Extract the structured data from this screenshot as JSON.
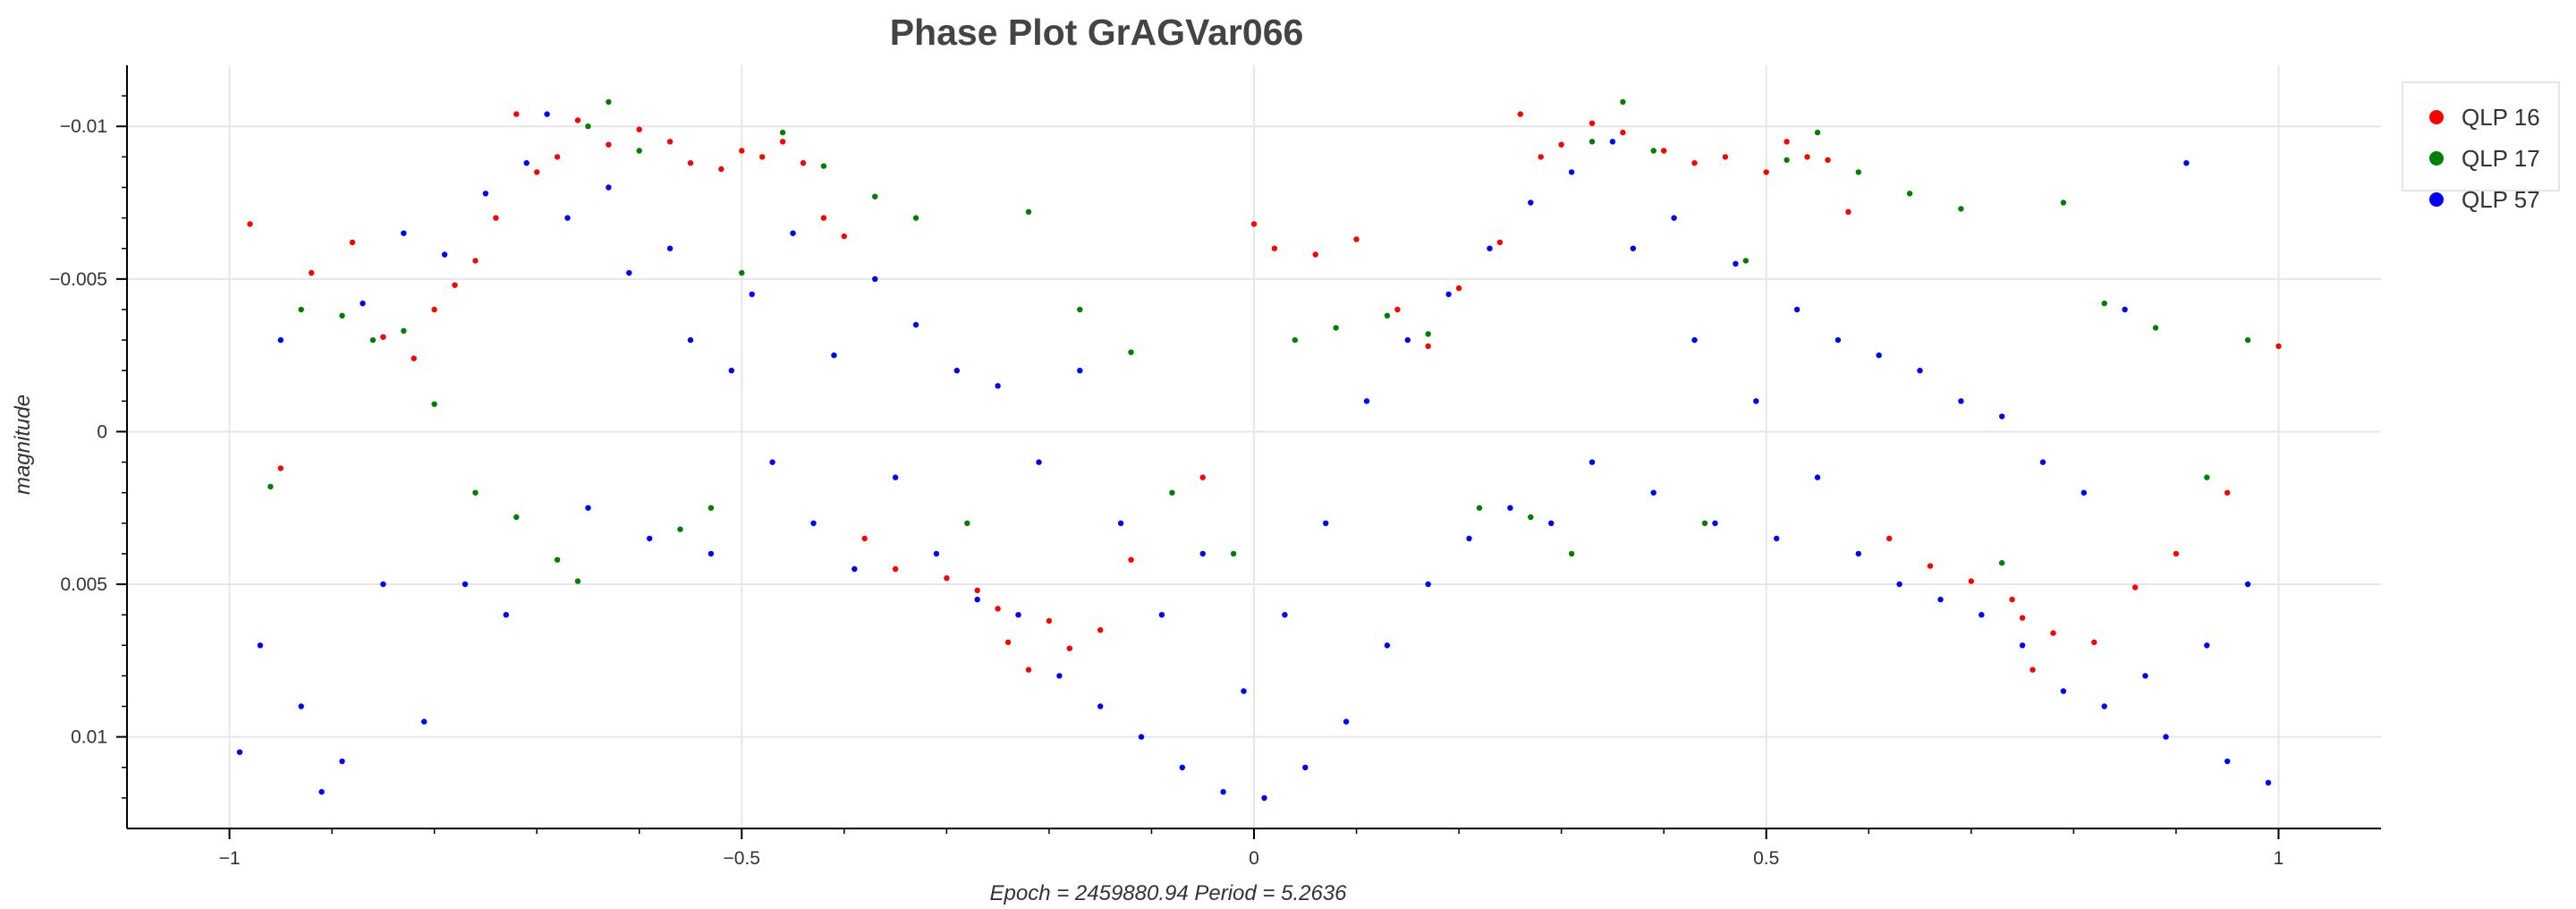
{
  "chart_data": {
    "type": "scatter",
    "title": "Phase Plot GrAGVar066",
    "xlabel": "Epoch = 2459880.94  Period = 5.2636",
    "ylabel": "magnitude",
    "xlim": [
      -1.1,
      1.1
    ],
    "ylim": [
      0.013,
      -0.012
    ],
    "y_inverted": true,
    "grid": true,
    "legend_position": "top-right",
    "x_ticks": [
      {
        "value": -1,
        "label": "−1"
      },
      {
        "value": -0.5,
        "label": "−0.5"
      },
      {
        "value": 0,
        "label": "0"
      },
      {
        "value": 0.5,
        "label": "0.5"
      },
      {
        "value": 1,
        "label": "1"
      }
    ],
    "y_ticks": [
      {
        "value": -0.01,
        "label": "−0.01"
      },
      {
        "value": -0.005,
        "label": "−0.005"
      },
      {
        "value": 0,
        "label": "0"
      },
      {
        "value": 0.005,
        "label": "0.005"
      },
      {
        "value": 0.01,
        "label": "0.01"
      }
    ],
    "series": [
      {
        "name": "QLP 16",
        "color": "#ff0000",
        "points": [
          [
            -0.98,
            -0.0068
          ],
          [
            -0.95,
            0.0012
          ],
          [
            -0.92,
            -0.0052
          ],
          [
            -0.88,
            -0.0062
          ],
          [
            -0.85,
            -0.0031
          ],
          [
            -0.82,
            -0.0024
          ],
          [
            -0.8,
            -0.004
          ],
          [
            -0.78,
            -0.0048
          ],
          [
            -0.76,
            -0.0056
          ],
          [
            -0.74,
            -0.007
          ],
          [
            -0.72,
            -0.0104
          ],
          [
            -0.7,
            -0.0085
          ],
          [
            -0.68,
            -0.009
          ],
          [
            -0.66,
            -0.0102
          ],
          [
            -0.63,
            -0.0094
          ],
          [
            -0.6,
            -0.0099
          ],
          [
            -0.57,
            -0.0095
          ],
          [
            -0.55,
            -0.0088
          ],
          [
            -0.52,
            -0.0086
          ],
          [
            -0.5,
            -0.0092
          ],
          [
            -0.48,
            -0.009
          ],
          [
            -0.46,
            -0.0095
          ],
          [
            -0.44,
            -0.0088
          ],
          [
            -0.42,
            -0.007
          ],
          [
            -0.4,
            -0.0064
          ],
          [
            -0.38,
            0.0035
          ],
          [
            -0.35,
            0.0045
          ],
          [
            -0.3,
            0.0048
          ],
          [
            -0.27,
            0.0052
          ],
          [
            -0.25,
            0.0058
          ],
          [
            -0.24,
            0.0069
          ],
          [
            -0.22,
            0.0078
          ],
          [
            -0.2,
            0.0062
          ],
          [
            -0.18,
            0.0071
          ],
          [
            -0.15,
            0.0065
          ],
          [
            -0.12,
            0.0042
          ],
          [
            -0.05,
            0.0015
          ],
          [
            0.0,
            -0.0068
          ],
          [
            0.02,
            -0.006
          ],
          [
            0.06,
            -0.0058
          ],
          [
            0.1,
            -0.0063
          ],
          [
            0.14,
            -0.004
          ],
          [
            0.17,
            -0.0028
          ],
          [
            0.2,
            -0.0047
          ],
          [
            0.24,
            -0.0062
          ],
          [
            0.26,
            -0.0104
          ],
          [
            0.28,
            -0.009
          ],
          [
            0.3,
            -0.0094
          ],
          [
            0.33,
            -0.0101
          ],
          [
            0.36,
            -0.0098
          ],
          [
            0.4,
            -0.0092
          ],
          [
            0.43,
            -0.0088
          ],
          [
            0.46,
            -0.009
          ],
          [
            0.5,
            -0.0085
          ],
          [
            0.52,
            -0.0095
          ],
          [
            0.54,
            -0.009
          ],
          [
            0.56,
            -0.0089
          ],
          [
            0.58,
            -0.0072
          ],
          [
            0.62,
            0.0035
          ],
          [
            0.66,
            0.0044
          ],
          [
            0.7,
            0.0049
          ],
          [
            0.74,
            0.0055
          ],
          [
            0.75,
            0.0061
          ],
          [
            0.76,
            0.0078
          ],
          [
            0.78,
            0.0066
          ],
          [
            0.82,
            0.0069
          ],
          [
            0.86,
            0.0051
          ],
          [
            0.9,
            0.004
          ],
          [
            0.95,
            0.002
          ],
          [
            1.0,
            -0.0028
          ]
        ]
      },
      {
        "name": "QLP 17",
        "color": "#008000",
        "points": [
          [
            -0.96,
            0.0018
          ],
          [
            -0.93,
            -0.004
          ],
          [
            -0.89,
            -0.0038
          ],
          [
            -0.86,
            -0.003
          ],
          [
            -0.83,
            -0.0033
          ],
          [
            -0.8,
            -0.0009
          ],
          [
            -0.76,
            0.002
          ],
          [
            -0.72,
            0.0028
          ],
          [
            -0.68,
            0.0042
          ],
          [
            -0.66,
            0.0049
          ],
          [
            -0.65,
            -0.01
          ],
          [
            -0.63,
            -0.0108
          ],
          [
            -0.6,
            -0.0092
          ],
          [
            -0.56,
            0.0032
          ],
          [
            -0.53,
            0.0025
          ],
          [
            -0.5,
            -0.0052
          ],
          [
            -0.46,
            -0.0098
          ],
          [
            -0.42,
            -0.0087
          ],
          [
            -0.37,
            -0.0077
          ],
          [
            -0.33,
            -0.007
          ],
          [
            -0.28,
            0.003
          ],
          [
            -0.22,
            -0.0072
          ],
          [
            -0.17,
            -0.004
          ],
          [
            -0.12,
            -0.0026
          ],
          [
            -0.08,
            0.002
          ],
          [
            -0.02,
            0.004
          ],
          [
            0.04,
            -0.003
          ],
          [
            0.08,
            -0.0034
          ],
          [
            0.13,
            -0.0038
          ],
          [
            0.17,
            -0.0032
          ],
          [
            0.22,
            0.0025
          ],
          [
            0.27,
            0.0028
          ],
          [
            0.31,
            0.004
          ],
          [
            0.33,
            -0.0095
          ],
          [
            0.36,
            -0.0108
          ],
          [
            0.39,
            -0.0092
          ],
          [
            0.44,
            0.003
          ],
          [
            0.48,
            -0.0056
          ],
          [
            0.52,
            -0.0089
          ],
          [
            0.55,
            -0.0098
          ],
          [
            0.59,
            -0.0085
          ],
          [
            0.64,
            -0.0078
          ],
          [
            0.69,
            -0.0073
          ],
          [
            0.73,
            0.0043
          ],
          [
            0.79,
            -0.0075
          ],
          [
            0.83,
            -0.0042
          ],
          [
            0.88,
            -0.0034
          ],
          [
            0.93,
            0.0015
          ],
          [
            0.97,
            -0.003
          ]
        ]
      },
      {
        "name": "QLP 57",
        "color": "#0000ff",
        "points": [
          [
            -0.99,
            0.0105
          ],
          [
            -0.97,
            0.007
          ],
          [
            -0.95,
            -0.003
          ],
          [
            -0.93,
            0.009
          ],
          [
            -0.91,
            0.0118
          ],
          [
            -0.89,
            0.0108
          ],
          [
            -0.87,
            -0.0042
          ],
          [
            -0.85,
            0.005
          ],
          [
            -0.83,
            -0.0065
          ],
          [
            -0.81,
            0.0095
          ],
          [
            -0.79,
            -0.0058
          ],
          [
            -0.77,
            0.005
          ],
          [
            -0.75,
            -0.0078
          ],
          [
            -0.73,
            0.006
          ],
          [
            -0.71,
            -0.0088
          ],
          [
            -0.69,
            -0.0104
          ],
          [
            -0.67,
            -0.007
          ],
          [
            -0.65,
            0.0025
          ],
          [
            -0.63,
            -0.008
          ],
          [
            -0.61,
            -0.0052
          ],
          [
            -0.59,
            0.0035
          ],
          [
            -0.57,
            -0.006
          ],
          [
            -0.55,
            -0.003
          ],
          [
            -0.53,
            0.004
          ],
          [
            -0.51,
            -0.002
          ],
          [
            -0.49,
            -0.0045
          ],
          [
            -0.47,
            0.001
          ],
          [
            -0.45,
            -0.0065
          ],
          [
            -0.43,
            0.003
          ],
          [
            -0.41,
            -0.0025
          ],
          [
            -0.39,
            0.0045
          ],
          [
            -0.37,
            -0.005
          ],
          [
            -0.35,
            0.0015
          ],
          [
            -0.33,
            -0.0035
          ],
          [
            -0.31,
            0.004
          ],
          [
            -0.29,
            -0.002
          ],
          [
            -0.27,
            0.0055
          ],
          [
            -0.25,
            -0.0015
          ],
          [
            -0.23,
            0.006
          ],
          [
            -0.21,
            0.001
          ],
          [
            -0.19,
            0.008
          ],
          [
            -0.17,
            -0.002
          ],
          [
            -0.15,
            0.009
          ],
          [
            -0.13,
            0.003
          ],
          [
            -0.11,
            0.01
          ],
          [
            -0.09,
            0.006
          ],
          [
            -0.07,
            0.011
          ],
          [
            -0.05,
            0.004
          ],
          [
            -0.03,
            0.0118
          ],
          [
            -0.01,
            0.0085
          ],
          [
            0.01,
            0.012
          ],
          [
            0.03,
            0.006
          ],
          [
            0.05,
            0.011
          ],
          [
            0.07,
            0.003
          ],
          [
            0.09,
            0.0095
          ],
          [
            0.11,
            -0.001
          ],
          [
            0.13,
            0.007
          ],
          [
            0.15,
            -0.003
          ],
          [
            0.17,
            0.005
          ],
          [
            0.19,
            -0.0045
          ],
          [
            0.21,
            0.0035
          ],
          [
            0.23,
            -0.006
          ],
          [
            0.25,
            0.0025
          ],
          [
            0.27,
            -0.0075
          ],
          [
            0.29,
            0.003
          ],
          [
            0.31,
            -0.0085
          ],
          [
            0.33,
            0.001
          ],
          [
            0.35,
            -0.0095
          ],
          [
            0.37,
            -0.006
          ],
          [
            0.39,
            0.002
          ],
          [
            0.41,
            -0.007
          ],
          [
            0.43,
            -0.003
          ],
          [
            0.45,
            0.003
          ],
          [
            0.47,
            -0.0055
          ],
          [
            0.49,
            -0.001
          ],
          [
            0.51,
            0.0035
          ],
          [
            0.53,
            -0.004
          ],
          [
            0.55,
            0.0015
          ],
          [
            0.57,
            -0.003
          ],
          [
            0.59,
            0.004
          ],
          [
            0.61,
            -0.0025
          ],
          [
            0.63,
            0.005
          ],
          [
            0.65,
            -0.002
          ],
          [
            0.67,
            0.0055
          ],
          [
            0.69,
            -0.001
          ],
          [
            0.71,
            0.006
          ],
          [
            0.73,
            -0.0005
          ],
          [
            0.75,
            0.007
          ],
          [
            0.77,
            0.001
          ],
          [
            0.79,
            0.0085
          ],
          [
            0.81,
            0.002
          ],
          [
            0.83,
            0.009
          ],
          [
            0.85,
            -0.004
          ],
          [
            0.87,
            0.008
          ],
          [
            0.89,
            0.01
          ],
          [
            0.91,
            -0.0088
          ],
          [
            0.93,
            0.007
          ],
          [
            0.95,
            0.0108
          ],
          [
            0.97,
            0.005
          ],
          [
            0.99,
            0.0115
          ]
        ]
      }
    ]
  }
}
